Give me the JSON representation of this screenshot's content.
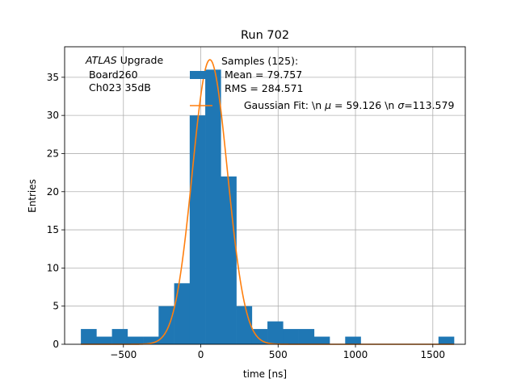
{
  "chart_data": {
    "type": "bar",
    "title": "Run 702",
    "xlabel": "time [ns]",
    "ylabel": "Entries",
    "xlim": [
      -880,
      1710
    ],
    "ylim": [
      0,
      39
    ],
    "xticks": [
      -500,
      0,
      500,
      1000,
      1500
    ],
    "xtick_labels": [
      "−500",
      "0",
      "500",
      "1000",
      "1500"
    ],
    "yticks": [
      0,
      5,
      10,
      15,
      20,
      25,
      30,
      35
    ],
    "grid": true,
    "annotation": {
      "line1_italic": "ATLAS",
      "line1_rest": " Upgrade",
      "line2": " Board260",
      "line3": " Ch023 35dB"
    },
    "legend": {
      "placement": "top-center",
      "samples_line1": "Samples (125):",
      "samples_line2": " Mean = 79.757",
      "samples_line3": " RMS = 284.571",
      "fit_prefix": "Gaussian Fit: \\n ",
      "fit_mu_symbol": "μ",
      "fit_mu_value": " = 59.126 \\n ",
      "fit_sigma_symbol": "σ",
      "fit_sigma_value": "=113.579"
    },
    "histogram": {
      "name": "Samples (125)",
      "color": "#1f77b4",
      "bin_start": -775,
      "bin_width": 100.5,
      "counts": [
        2,
        1,
        2,
        1,
        1,
        5,
        8,
        30,
        36,
        22,
        5,
        2,
        3,
        2,
        2,
        1,
        0,
        1,
        0,
        0,
        0,
        0,
        0,
        1
      ]
    },
    "fit": {
      "name": "Gaussian Fit",
      "color": "#ff7f0e",
      "mu": 59.126,
      "sigma": 113.579,
      "amplitude": 37.3,
      "x_range": [
        -775,
        1637
      ]
    }
  }
}
